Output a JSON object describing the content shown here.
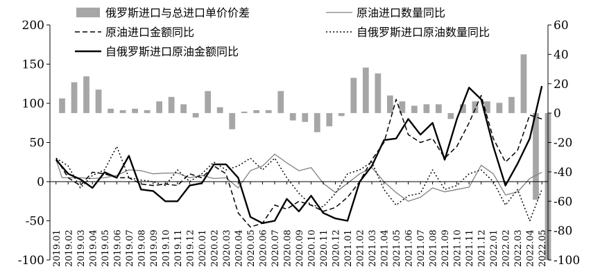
{
  "chart_data": {
    "type": "bar+line",
    "title": "",
    "x": [
      "2019.01",
      "2019.02",
      "2019.03",
      "2019.04",
      "2019.05",
      "2019.06",
      "2019.07",
      "2019.08",
      "2019.09",
      "2019.10",
      "2019.11",
      "2019.12",
      "2020.01",
      "2020.02",
      "2020.03",
      "2020.04",
      "2020.05",
      "2020.06",
      "2020.07",
      "2020.08",
      "2020.09",
      "2020.10",
      "2020.11",
      "2020.12",
      "2021.01",
      "2021.02",
      "2021.03",
      "2021.04",
      "2021.05",
      "2021.06",
      "2021.07",
      "2021.08",
      "2021.09",
      "2021.10",
      "2021.11",
      "2021.12",
      "2022.01",
      "2022.02",
      "2022.03",
      "2022.04",
      "2022.05"
    ],
    "bar_points": [
      [
        0.5,
        10
      ],
      [
        1.5,
        21
      ],
      [
        2.5,
        25
      ],
      [
        3.5,
        16
      ],
      [
        4.5,
        3
      ],
      [
        5.5,
        2
      ],
      [
        6.5,
        3
      ],
      [
        7.5,
        2
      ],
      [
        8.5,
        8
      ],
      [
        9.5,
        11
      ],
      [
        10.5,
        6
      ],
      [
        11.5,
        -3
      ],
      [
        12.5,
        15
      ],
      [
        13.5,
        4
      ],
      [
        14.5,
        -11
      ],
      [
        15.5,
        1
      ],
      [
        16.5,
        2
      ],
      [
        17.5,
        2
      ],
      [
        18.5,
        15
      ],
      [
        19.5,
        -5
      ],
      [
        20.5,
        -6
      ],
      [
        21.5,
        -13
      ],
      [
        22.5,
        -9
      ],
      [
        23.5,
        -2
      ],
      [
        24.5,
        24
      ],
      [
        25.5,
        31
      ],
      [
        26.5,
        27
      ],
      [
        27.5,
        12
      ],
      [
        28.5,
        8
      ],
      [
        29.5,
        5
      ],
      [
        30.5,
        6
      ],
      [
        31.5,
        6
      ],
      [
        32.5,
        -4
      ],
      [
        33.5,
        6
      ],
      [
        34.5,
        8
      ],
      [
        35.5,
        8
      ],
      [
        36.5,
        7
      ],
      [
        37.5,
        11
      ],
      [
        38.5,
        40
      ],
      [
        39.5,
        -59
      ],
      [
        40.5,
        -100
      ]
    ],
    "series": [
      {
        "name": "原油进口数量同比",
        "style": "solid-thin",
        "points": [
          [
            0,
            28
          ],
          [
            0.5,
            5
          ],
          [
            2,
            5
          ],
          [
            3,
            4
          ],
          [
            4,
            5
          ],
          [
            5,
            8
          ],
          [
            6,
            15
          ],
          [
            7,
            14
          ],
          [
            8,
            10
          ],
          [
            9,
            11
          ],
          [
            10,
            11
          ],
          [
            11,
            5
          ],
          [
            12,
            8
          ],
          [
            13,
            4
          ],
          [
            14,
            5
          ],
          [
            15,
            -8
          ],
          [
            16,
            14
          ],
          [
            17,
            20
          ],
          [
            18,
            35
          ],
          [
            19,
            24
          ],
          [
            20,
            14
          ],
          [
            21,
            18
          ],
          [
            22,
            -2
          ],
          [
            23,
            -14
          ],
          [
            24,
            -2
          ],
          [
            25,
            10
          ],
          [
            26,
            18
          ],
          [
            27,
            0
          ],
          [
            28,
            -14
          ],
          [
            29,
            -25
          ],
          [
            30,
            -20
          ],
          [
            31,
            -8
          ],
          [
            32,
            -13
          ],
          [
            33,
            -10
          ],
          [
            34,
            -7
          ],
          [
            35,
            21
          ],
          [
            36,
            10
          ],
          [
            37,
            -17
          ],
          [
            38,
            -13
          ],
          [
            39,
            4
          ],
          [
            40,
            12
          ]
        ]
      },
      {
        "name": "原油进口金额同比",
        "style": "dashed",
        "points": [
          [
            0,
            30
          ],
          [
            1,
            5
          ],
          [
            2,
            -5
          ],
          [
            3,
            12
          ],
          [
            4,
            10
          ],
          [
            5,
            5
          ],
          [
            6,
            5
          ],
          [
            7,
            -3
          ],
          [
            8,
            -5
          ],
          [
            9,
            -3
          ],
          [
            10,
            -5
          ],
          [
            11,
            10
          ],
          [
            12,
            5
          ],
          [
            13,
            20
          ],
          [
            14,
            10
          ],
          [
            15,
            -40
          ],
          [
            16,
            -58
          ],
          [
            17,
            -53
          ],
          [
            18,
            -30
          ],
          [
            19,
            -35
          ],
          [
            20,
            -25
          ],
          [
            21,
            -30
          ],
          [
            22,
            -38
          ],
          [
            23,
            -33
          ],
          [
            24,
            -20
          ],
          [
            25,
            0
          ],
          [
            26,
            28
          ],
          [
            27,
            50
          ],
          [
            28,
            105
          ],
          [
            29,
            60
          ],
          [
            30,
            50
          ],
          [
            31,
            55
          ],
          [
            32,
            30
          ],
          [
            33,
            45
          ],
          [
            34,
            75
          ],
          [
            35,
            110
          ],
          [
            36,
            55
          ],
          [
            37,
            25
          ],
          [
            38,
            40
          ],
          [
            39,
            85
          ],
          [
            40,
            80
          ]
        ]
      },
      {
        "name": "自俄罗斯进口原油数量同比",
        "style": "dotted",
        "points": [
          [
            0,
            30
          ],
          [
            1,
            20
          ],
          [
            2,
            -8
          ],
          [
            3,
            8
          ],
          [
            4,
            15
          ],
          [
            5,
            45
          ],
          [
            6,
            5
          ],
          [
            7,
            2
          ],
          [
            8,
            0
          ],
          [
            9,
            -5
          ],
          [
            10,
            15
          ],
          [
            11,
            0
          ],
          [
            12,
            10
          ],
          [
            13,
            25
          ],
          [
            14,
            15
          ],
          [
            15,
            20
          ],
          [
            16,
            30
          ],
          [
            17,
            15
          ],
          [
            18,
            30
          ],
          [
            19,
            5
          ],
          [
            20,
            -15
          ],
          [
            21,
            -30
          ],
          [
            22,
            -32
          ],
          [
            23,
            -15
          ],
          [
            24,
            10
          ],
          [
            25,
            15
          ],
          [
            26,
            25
          ],
          [
            27,
            -10
          ],
          [
            28,
            -30
          ],
          [
            29,
            -18
          ],
          [
            30,
            -15
          ],
          [
            31,
            15
          ],
          [
            32,
            -10
          ],
          [
            33,
            -5
          ],
          [
            34,
            10
          ],
          [
            35,
            15
          ],
          [
            36,
            0
          ],
          [
            37,
            -30
          ],
          [
            38,
            -10
          ],
          [
            39,
            -50
          ],
          [
            40,
            -10
          ]
        ]
      },
      {
        "name": "自俄罗斯进口原油金额同比",
        "style": "solid-thick",
        "points": [
          [
            0,
            28
          ],
          [
            1,
            10
          ],
          [
            2,
            3
          ],
          [
            3,
            -8
          ],
          [
            4,
            12
          ],
          [
            5,
            5
          ],
          [
            6,
            33
          ],
          [
            7,
            -10
          ],
          [
            8,
            -12
          ],
          [
            9,
            -25
          ],
          [
            10,
            -25
          ],
          [
            11,
            -5
          ],
          [
            12,
            -2
          ],
          [
            13,
            22
          ],
          [
            14,
            22
          ],
          [
            15,
            5
          ],
          [
            16,
            -45
          ],
          [
            17,
            -53
          ],
          [
            18,
            -50
          ],
          [
            19,
            -22
          ],
          [
            20,
            -38
          ],
          [
            21,
            -18
          ],
          [
            22,
            -40
          ],
          [
            23,
            -47
          ],
          [
            24,
            -50
          ],
          [
            25,
            0
          ],
          [
            26,
            20
          ],
          [
            27,
            53
          ],
          [
            28,
            55
          ],
          [
            29,
            80
          ],
          [
            30,
            60
          ],
          [
            31,
            75
          ],
          [
            32,
            28
          ],
          [
            33,
            80
          ],
          [
            34,
            120
          ],
          [
            35,
            105
          ],
          [
            36,
            45
          ],
          [
            37,
            -5
          ],
          [
            38,
            23
          ],
          [
            39,
            55
          ],
          [
            40,
            122
          ]
        ]
      }
    ],
    "y_left": {
      "min": -100,
      "max": 200,
      "ticks": [
        "-100",
        "-50",
        "0",
        "50",
        "100",
        "150",
        "200"
      ]
    },
    "y_right": {
      "min": -100,
      "max": 60,
      "ticks": [
        "-100",
        "-80",
        "-60",
        "-40",
        "-20",
        "0",
        "20",
        "40",
        "60"
      ]
    },
    "legend": [
      {
        "label": "俄罗斯进口与总进口单价价差",
        "style": "bar"
      },
      {
        "label": "原油进口数量同比",
        "style": "solid-thin"
      },
      {
        "label": "原油进口金额同比",
        "style": "dashed"
      },
      {
        "label": "自俄罗斯进口原油数量同比",
        "style": "dotted"
      },
      {
        "label": "自俄罗斯进口原油金额同比",
        "style": "solid-thick"
      }
    ],
    "legend_placement": "top-left",
    "grid": false,
    "colors": {
      "bar": "#a6a6a6",
      "thin_line": "#808080",
      "lines": "#000000"
    }
  }
}
